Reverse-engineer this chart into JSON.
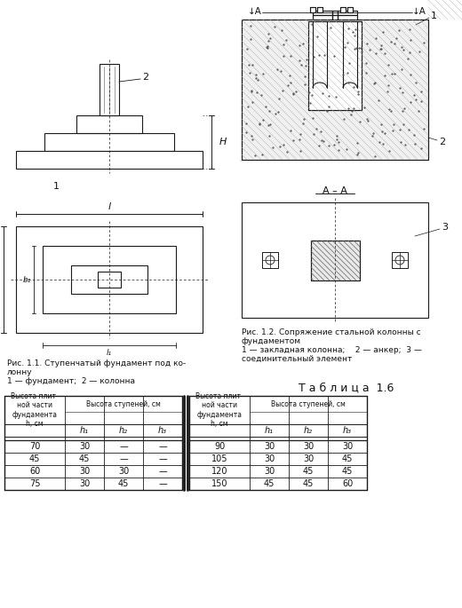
{
  "table_title": "Т а б л и ц а  1.6",
  "table_data_left": [
    [
      "70",
      "30",
      "—",
      "—"
    ],
    [
      "45",
      "45",
      "—",
      "—"
    ],
    [
      "60",
      "30",
      "30",
      "—"
    ],
    [
      "75",
      "30",
      "45",
      "—"
    ]
  ],
  "table_data_right": [
    [
      "90",
      "30",
      "30",
      "30"
    ],
    [
      "105",
      "30",
      "30",
      "45"
    ],
    [
      "120",
      "30",
      "45",
      "45"
    ],
    [
      "150",
      "45",
      "45",
      "60"
    ]
  ],
  "bg_color": "#ffffff",
  "line_color": "#1a1a1a",
  "text_color": "#111111"
}
